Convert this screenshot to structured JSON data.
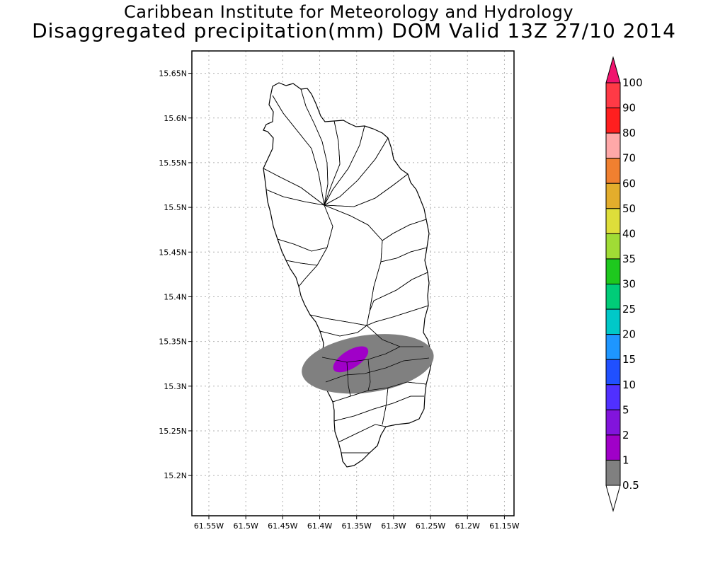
{
  "title_line1": "Caribbean Institute for Meteorology and Hydrology",
  "title_line2": "Disaggregated precipitation(mm) DOM Valid 13Z 27/10 2014",
  "map": {
    "lat_ticks": [
      "15.65N",
      "15.6N",
      "15.55N",
      "15.5N",
      "15.45N",
      "15.4N",
      "15.35N",
      "15.3N",
      "15.25N",
      "15.2N"
    ],
    "lat_values": [
      15.65,
      15.6,
      15.55,
      15.5,
      15.45,
      15.4,
      15.35,
      15.3,
      15.25,
      15.2
    ],
    "lon_ticks": [
      "61.55W",
      "61.5W",
      "61.45W",
      "61.4W",
      "61.35W",
      "61.3W",
      "61.25W",
      "61.2W",
      "61.15W"
    ],
    "lon_values": [
      -61.55,
      -61.5,
      -61.45,
      -61.4,
      -61.35,
      -61.3,
      -61.25,
      -61.2,
      -61.15
    ],
    "lat_range": [
      15.155,
      15.675
    ],
    "lon_range": [
      -61.573,
      -61.137
    ],
    "grid": true,
    "island": "Dominica",
    "precip_areas": [
      {
        "level": "0.5-1 mm",
        "color": "#808080",
        "center": [
          -61.335,
          15.325
        ],
        "half_axes_deg": [
          0.09,
          0.032
        ],
        "rotation_deg": -8
      },
      {
        "level": "1-2 mm",
        "color": "#a000c8",
        "center": [
          -61.358,
          15.33
        ],
        "half_axes_deg": [
          0.027,
          0.01
        ],
        "rotation_deg": -32
      }
    ]
  },
  "colorbar": {
    "labels": [
      "100",
      "90",
      "80",
      "70",
      "60",
      "50",
      "40",
      "35",
      "30",
      "25",
      "20",
      "15",
      "10",
      "5",
      "2",
      "1",
      "0.5"
    ],
    "colors": [
      "#ff3a46",
      "#ff1f1f",
      "#ffa8a8",
      "#f08030",
      "#e3ad2c",
      "#dede3a",
      "#a0dc35",
      "#1ec81e",
      "#00cc78",
      "#00c8c8",
      "#1e96ff",
      "#2050ff",
      "#5030ff",
      "#8214dc",
      "#a000c8",
      "#808080"
    ],
    "top_arrow_color": "#f0146e",
    "bottom_arrow_color": "#ffffff"
  }
}
